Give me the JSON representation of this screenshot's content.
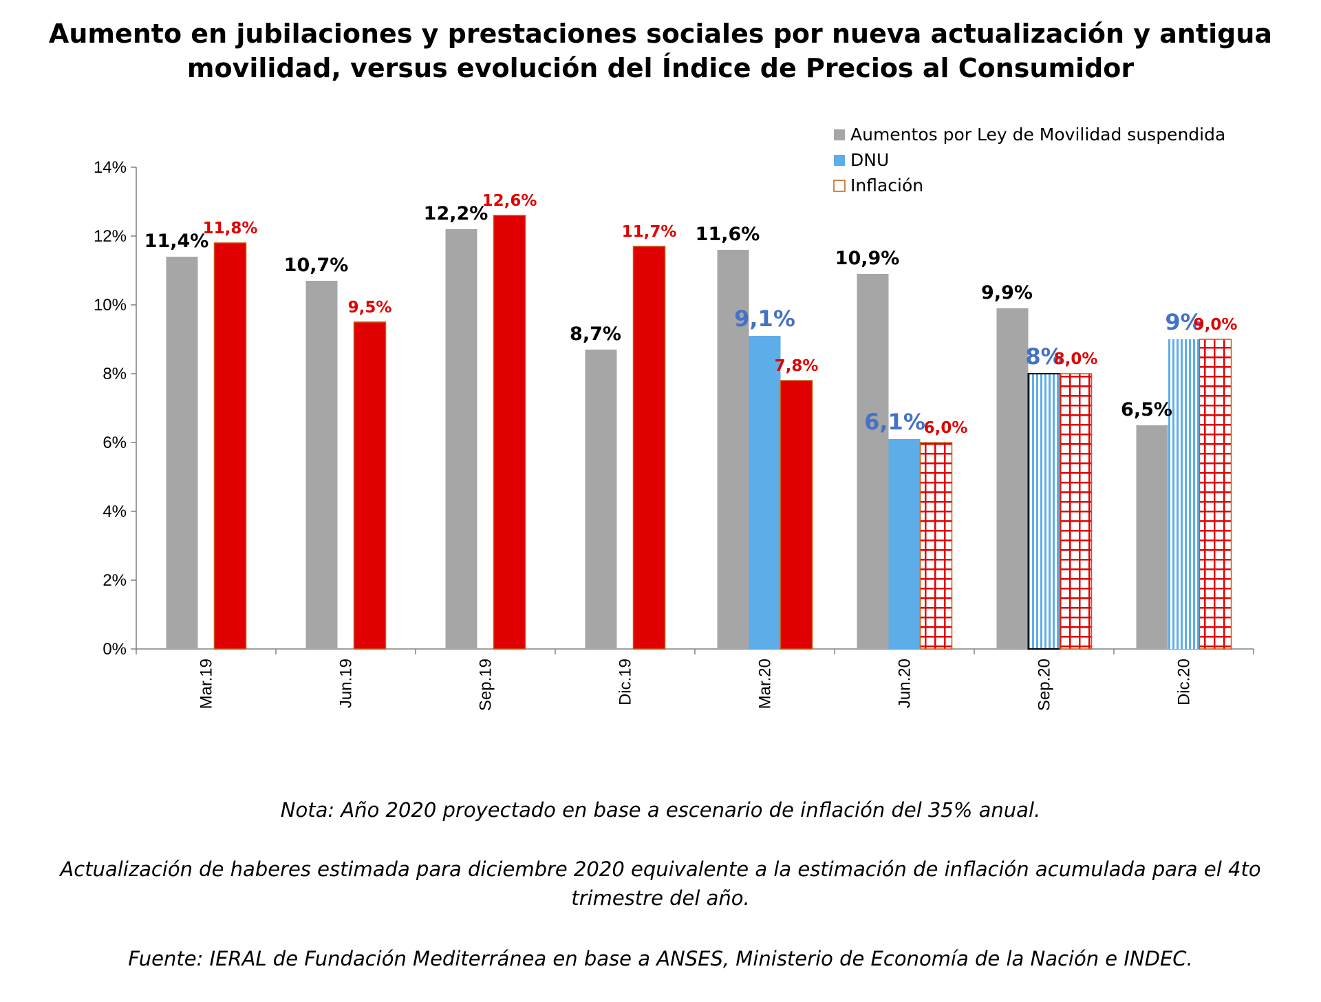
{
  "chart_data": {
    "type": "bar",
    "title": "Aumento en jubilaciones y prestaciones sociales por nueva actualización y antigua movilidad, versus evolución del Índice de Precios al Consumidor",
    "categories": [
      "Mar.19",
      "Jun.19",
      "Sep.19",
      "Dic.19",
      "Mar.20",
      "Jun.20",
      "Sep.20",
      "Dic.20"
    ],
    "ylim": [
      0,
      14
    ],
    "yticks": [
      0,
      2,
      4,
      6,
      8,
      10,
      12,
      14
    ],
    "ytick_labels": [
      "0%",
      "2%",
      "4%",
      "6%",
      "8%",
      "10%",
      "12%",
      "14%"
    ],
    "legend_position": "top-right",
    "grid": false,
    "series": [
      {
        "name": "Aumentos por Ley de Movilidad suspendida",
        "color": "#a6a6a6",
        "values": [
          11.4,
          10.7,
          12.2,
          8.7,
          11.6,
          10.9,
          9.9,
          6.5
        ],
        "labels": [
          "11,4%",
          "10,7%",
          "12,2%",
          "8,7%",
          "11,6%",
          "10,9%",
          "9,9%",
          "6,5%"
        ]
      },
      {
        "name": "DNU",
        "color": "#5dade9",
        "label_color": "#4472c4",
        "values": [
          null,
          null,
          null,
          null,
          9.1,
          6.1,
          8.0,
          9.0
        ],
        "labels": [
          "",
          "",
          "",
          "",
          "9,1%",
          "6,1%",
          "8%",
          "9%"
        ],
        "projected": [
          false,
          false,
          false,
          false,
          false,
          false,
          true,
          true
        ]
      },
      {
        "name": "Inflación",
        "color": "#e00000",
        "values": [
          11.8,
          9.5,
          12.6,
          11.7,
          7.8,
          6.0,
          8.0,
          9.0
        ],
        "labels": [
          "11,8%",
          "9,5%",
          "12,6%",
          "11,7%",
          "7,8%",
          "6,0%",
          "8,0%",
          "9,0%"
        ],
        "projected": [
          false,
          false,
          false,
          false,
          false,
          true,
          true,
          true
        ]
      }
    ]
  },
  "notes": {
    "nota": "Nota: Año 2020 proyectado en base a escenario de inflación del 35% anual.",
    "actualizacion": "Actualización de haberes estimada para diciembre 2020 equivalente a la estimación de inflación acumulada para el 4to trimestre del año.",
    "fuente": "Fuente: IERAL de Fundación Mediterránea en base a ANSES, Ministerio de Economía de la Nación e INDEC."
  }
}
